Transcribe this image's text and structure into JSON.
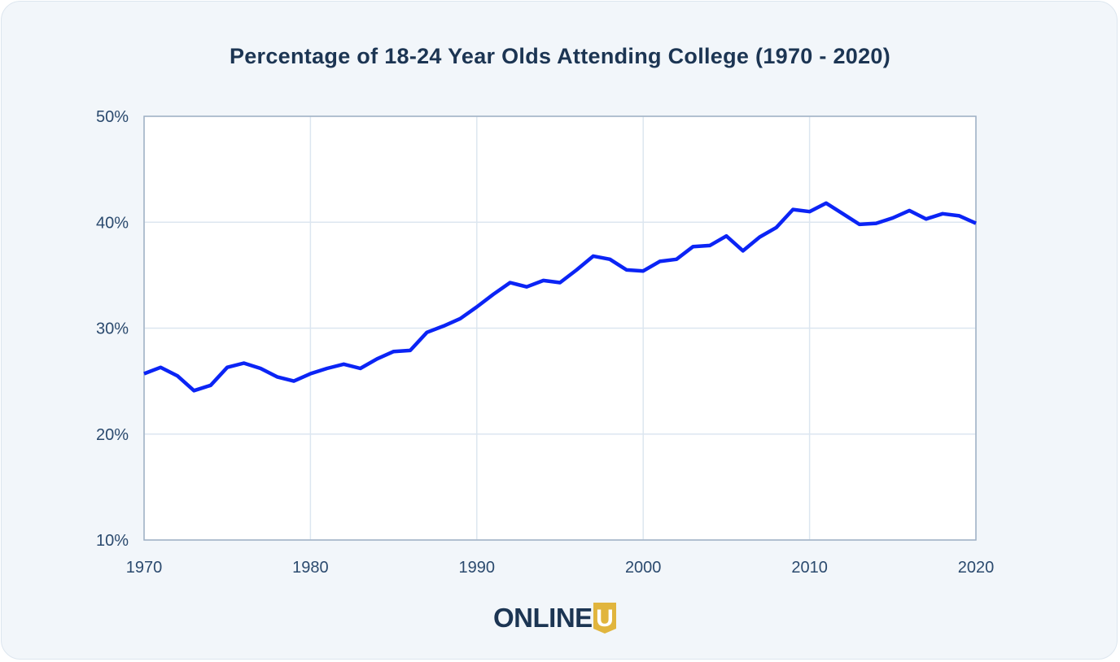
{
  "header": {
    "title": "Percentage of 18-24 Year Olds Attending College (1970 - 2020)"
  },
  "logo": {
    "text": "ONLINE",
    "badge_letter": "U",
    "badge_color": "#e1b53d",
    "text_color": "#1c3553"
  },
  "colors": {
    "line": "#0b24f5",
    "grid": "#dce6f0",
    "axis": "#9fb0c4",
    "tick": "#2b4a6e",
    "plot_bg": "#ffffff",
    "card_bg": "#f2f6fa"
  },
  "chart_data": {
    "type": "line",
    "title": "Percentage of 18-24 Year Olds Attending College (1970 - 2020)",
    "xlabel": "",
    "ylabel": "",
    "xlim": [
      1970,
      2020
    ],
    "ylim": [
      10,
      50
    ],
    "x_ticks": [
      "1970",
      "1980",
      "1990",
      "2000",
      "2010",
      "2020"
    ],
    "y_ticks": [
      "10%",
      "20%",
      "30%",
      "40%",
      "50%"
    ],
    "grid": true,
    "series": [
      {
        "x": [
          1970,
          1971,
          1972,
          1973,
          1974,
          1975,
          1976,
          1977,
          1978,
          1979,
          1980,
          1981,
          1982,
          1983,
          1984,
          1985,
          1986,
          1987,
          1988,
          1989,
          1990,
          1991,
          1992,
          1993,
          1994,
          1995,
          1996,
          1997,
          1998,
          1999,
          2000,
          2001,
          2002,
          2003,
          2004,
          2005,
          2006,
          2007,
          2008,
          2009,
          2010,
          2011,
          2012,
          2013,
          2014,
          2015,
          2016,
          2017,
          2018,
          2019,
          2020
        ],
        "values": [
          25.7,
          26.3,
          25.5,
          24.1,
          24.6,
          26.3,
          26.7,
          26.2,
          25.4,
          25.0,
          25.7,
          26.2,
          26.6,
          26.2,
          27.1,
          27.8,
          27.9,
          29.6,
          30.2,
          30.9,
          32.0,
          33.2,
          34.3,
          33.9,
          34.5,
          34.3,
          35.5,
          36.8,
          36.5,
          35.5,
          35.4,
          36.3,
          36.5,
          37.7,
          37.8,
          38.7,
          37.3,
          38.6,
          39.5,
          41.2,
          41.0,
          41.8,
          40.8,
          39.8,
          39.9,
          40.4,
          41.1,
          40.3,
          40.8,
          40.6,
          39.9
        ]
      }
    ]
  }
}
